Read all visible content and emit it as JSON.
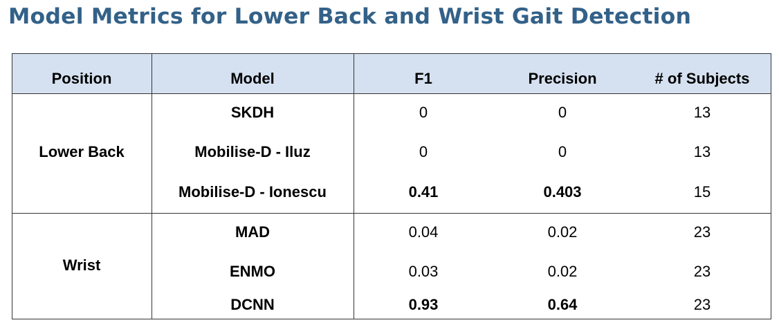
{
  "header": {
    "title": "Model Metrics for Lower Back and Wrist Gait Detection"
  },
  "table": {
    "columns": [
      "Position",
      "Model",
      "F1",
      "Precision",
      "# of Subjects"
    ],
    "groups": [
      {
        "position": "Lower Back",
        "rows": [
          {
            "model": "SKDH",
            "f1": 0,
            "precision": 0,
            "subjects": 13,
            "bold": false
          },
          {
            "model": "Mobilise-D - Iluz",
            "f1": 0,
            "precision": 0,
            "subjects": 13,
            "bold": false
          },
          {
            "model": "Mobilise-D - Ionescu",
            "f1": 0.41,
            "precision": 0.403,
            "subjects": 15,
            "bold": true
          }
        ]
      },
      {
        "position": "Wrist",
        "rows": [
          {
            "model": "MAD",
            "f1": 0.04,
            "precision": 0.02,
            "subjects": 23,
            "bold": false
          },
          {
            "model": "ENMO",
            "f1": 0.03,
            "precision": 0.02,
            "subjects": 23,
            "bold": false
          },
          {
            "model": "DCNN",
            "f1": 0.93,
            "precision": 0.64,
            "subjects": 23,
            "bold": true
          }
        ]
      }
    ]
  }
}
